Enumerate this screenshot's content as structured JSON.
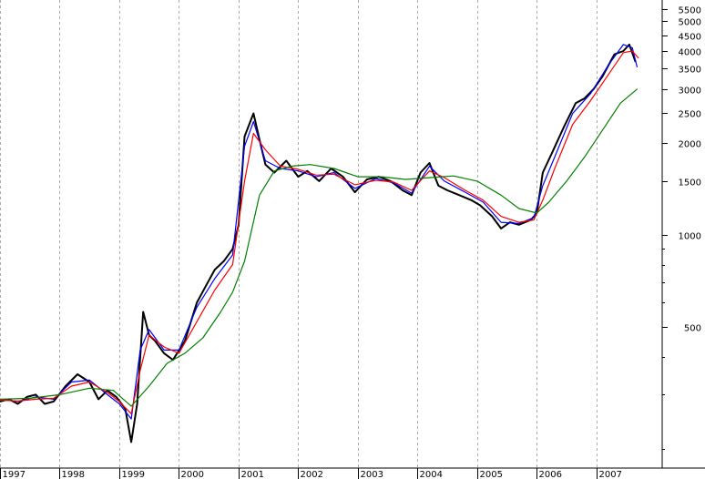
{
  "chart_data": {
    "type": "line",
    "title": "",
    "xlabel": "",
    "ylabel": "",
    "y_scale": "log",
    "ylim": [
      180,
      5800
    ],
    "xlim": [
      1997.0,
      2007.75
    ],
    "grid": true,
    "legend": "none",
    "x_tick_labels": [
      {
        "label": "1997",
        "x": 1997.0
      },
      {
        "label": "1998",
        "x": 1998.0
      },
      {
        "label": "1999",
        "x": 1999.0
      },
      {
        "label": "2000",
        "x": 2000.0
      },
      {
        "label": "2001",
        "x": 2001.0
      },
      {
        "label": "2002",
        "x": 2002.0
      },
      {
        "label": "2003",
        "x": 2003.0
      },
      {
        "label": "2004",
        "x": 2004.0
      },
      {
        "label": "2005",
        "x": 2005.0
      },
      {
        "label": "2006",
        "x": 2006.0
      },
      {
        "label": "2007",
        "x": 2007.0
      }
    ],
    "y_tick_labels": [
      {
        "label": "5500",
        "y": 5500
      },
      {
        "label": "5000",
        "y": 5000
      },
      {
        "label": "4500",
        "y": 4500
      },
      {
        "label": "4000",
        "y": 4000
      },
      {
        "label": "3500",
        "y": 3500
      },
      {
        "label": "3000",
        "y": 3000
      },
      {
        "label": "2500",
        "y": 2500
      },
      {
        "label": "2000",
        "y": 2000
      },
      {
        "label": "1500",
        "y": 1500
      },
      {
        "label": "1000",
        "y": 1000
      },
      {
        "label": "500",
        "y": 500
      }
    ],
    "series": [
      {
        "color": "#000000",
        "x": [
          1997.0,
          1997.15,
          1997.3,
          1997.45,
          1997.6,
          1997.75,
          1997.9,
          1998.1,
          1998.3,
          1998.5,
          1998.65,
          1998.8,
          1998.95,
          1999.1,
          1999.2,
          1999.3,
          1999.4,
          1999.5,
          1999.6,
          1999.75,
          1999.9,
          2000.1,
          2000.3,
          2000.45,
          2000.6,
          2000.75,
          2000.9,
          2001.0,
          2001.1,
          2001.25,
          2001.35,
          2001.45,
          2001.6,
          2001.8,
          2002.0,
          2002.15,
          2002.35,
          2002.55,
          2002.75,
          2002.95,
          2003.15,
          2003.35,
          2003.55,
          2003.75,
          2003.9,
          2004.05,
          2004.2,
          2004.35,
          2004.5,
          2004.7,
          2004.9,
          2005.05,
          2005.25,
          2005.4,
          2005.55,
          2005.7,
          2005.9,
          2006.0,
          2006.1,
          2006.25,
          2006.45,
          2006.65,
          2006.8,
          2006.95,
          2007.1,
          2007.3,
          2007.45,
          2007.55,
          2007.65
        ],
        "values": [
          285,
          290,
          280,
          295,
          300,
          280,
          285,
          320,
          350,
          330,
          290,
          310,
          295,
          270,
          210,
          280,
          560,
          470,
          450,
          410,
          390,
          450,
          600,
          680,
          770,
          820,
          900,
          1080,
          2100,
          2500,
          2050,
          1700,
          1600,
          1750,
          1550,
          1620,
          1500,
          1650,
          1550,
          1380,
          1520,
          1550,
          1500,
          1400,
          1350,
          1600,
          1720,
          1450,
          1400,
          1350,
          1300,
          1250,
          1150,
          1050,
          1100,
          1080,
          1120,
          1180,
          1600,
          1850,
          2250,
          2700,
          2800,
          3000,
          3300,
          3900,
          4000,
          4200,
          3700
        ]
      },
      {
        "color": "#0000ff",
        "x": [
          1997.0,
          1997.3,
          1997.6,
          1997.9,
          1998.2,
          1998.5,
          1998.8,
          1999.0,
          1999.2,
          1999.35,
          1999.5,
          1999.75,
          2000.0,
          2000.3,
          2000.6,
          2000.9,
          2001.1,
          2001.25,
          2001.45,
          2001.7,
          2002.0,
          2002.3,
          2002.6,
          2002.95,
          2003.3,
          2003.6,
          2003.9,
          2004.2,
          2004.45,
          2004.8,
          2005.1,
          2005.4,
          2005.7,
          2005.95,
          2006.1,
          2006.3,
          2006.6,
          2006.9,
          2007.2,
          2007.45,
          2007.6,
          2007.68
        ],
        "values": [
          290,
          285,
          295,
          290,
          330,
          335,
          300,
          280,
          250,
          420,
          490,
          420,
          420,
          580,
          720,
          860,
          1950,
          2350,
          1750,
          1650,
          1620,
          1550,
          1600,
          1420,
          1530,
          1480,
          1370,
          1680,
          1500,
          1380,
          1280,
          1100,
          1090,
          1140,
          1450,
          1800,
          2500,
          2900,
          3600,
          4200,
          4100,
          3550
        ]
      },
      {
        "color": "#ff0000",
        "x": [
          1997.0,
          1997.3,
          1997.6,
          1997.9,
          1998.2,
          1998.5,
          1998.8,
          1999.0,
          1999.2,
          1999.35,
          1999.5,
          1999.75,
          2000.0,
          2000.3,
          2000.6,
          2000.9,
          2001.1,
          2001.25,
          2001.45,
          2001.7,
          2002.0,
          2002.3,
          2002.6,
          2002.95,
          2003.3,
          2003.6,
          2003.9,
          2004.2,
          2004.45,
          2004.8,
          2005.1,
          2005.4,
          2005.7,
          2005.95,
          2006.1,
          2006.3,
          2006.6,
          2006.9,
          2007.2,
          2007.45,
          2007.6,
          2007.7
        ],
        "values": [
          288,
          286,
          290,
          292,
          320,
          330,
          305,
          285,
          260,
          360,
          470,
          430,
          410,
          520,
          660,
          800,
          1500,
          2150,
          1900,
          1680,
          1640,
          1570,
          1580,
          1460,
          1510,
          1490,
          1400,
          1620,
          1540,
          1400,
          1300,
          1150,
          1100,
          1120,
          1300,
          1650,
          2300,
          2750,
          3350,
          3950,
          4000,
          3800
        ]
      },
      {
        "color": "#008000",
        "x": [
          1997.0,
          1997.5,
          1998.0,
          1998.5,
          1998.9,
          1999.2,
          1999.5,
          1999.8,
          2000.1,
          2000.4,
          2000.7,
          2000.9,
          2001.1,
          2001.35,
          2001.6,
          2001.9,
          2002.2,
          2002.6,
          2003.0,
          2003.4,
          2003.8,
          2004.2,
          2004.6,
          2005.0,
          2005.4,
          2005.7,
          2006.0,
          2006.2,
          2006.5,
          2006.8,
          2007.1,
          2007.4,
          2007.68
        ],
        "values": [
          290,
          292,
          300,
          315,
          310,
          275,
          320,
          380,
          410,
          460,
          560,
          650,
          820,
          1350,
          1620,
          1680,
          1700,
          1650,
          1550,
          1550,
          1520,
          1540,
          1560,
          1500,
          1350,
          1220,
          1180,
          1280,
          1500,
          1800,
          2200,
          2700,
          3000
        ]
      }
    ]
  }
}
